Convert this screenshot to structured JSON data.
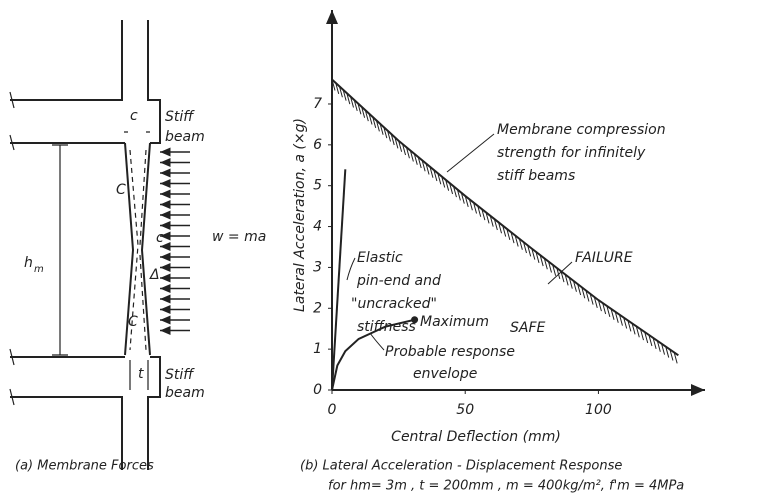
{
  "diagram": {
    "labels": {
      "stiff_top": [
        "Stiff",
        "beam"
      ],
      "stiff_bottom": [
        "Stiff",
        "beam"
      ],
      "c_top": "c",
      "C_upper": "C",
      "c_mid": "c",
      "delta": "Δ",
      "C_lower": "C",
      "t": "t",
      "load": "w = ma",
      "height": "h",
      "height_sub": "m"
    },
    "caption": "(a) Membrane Forces"
  },
  "chart_data": {
    "type": "line",
    "caption": [
      "(b) Lateral Acceleration - Displacement Response",
      "for hm= 3m , t = 200mm , m = 400kg/m², f'm = 4MPa"
    ],
    "x_label": "Central Deflection (mm)",
    "y_label": "Lateral Acceleration, a (×g)",
    "xlim": [
      0,
      140
    ],
    "ylim": [
      0,
      9.3
    ],
    "xticks": [
      0,
      50,
      100
    ],
    "yticks": [
      0,
      1,
      2,
      3,
      4,
      5,
      6,
      7
    ],
    "series": [
      {
        "name": "Membrane compression strength",
        "color": "#222222",
        "hatched": true,
        "x": [
          0,
          25,
          50,
          75,
          100,
          130
        ],
        "values": [
          7.6,
          6.1,
          4.75,
          3.46,
          2.2,
          0.85
        ]
      },
      {
        "name": "Elastic stiffness",
        "color": "#222222",
        "x": [
          0,
          5
        ],
        "values": [
          0,
          5.4
        ]
      },
      {
        "name": "Probable response envelope",
        "color": "#222222",
        "x": [
          0,
          2,
          5,
          10,
          20,
          31
        ],
        "values": [
          0,
          0.6,
          0.95,
          1.25,
          1.55,
          1.72
        ]
      }
    ],
    "annotations": {
      "membrane": [
        "Membrane compression",
        "strength for infinitely",
        "stiff beams"
      ],
      "elastic": [
        "Elastic",
        "pin-end and",
        "\"uncracked\"",
        "stiffness"
      ],
      "maximum": "Maximum",
      "envelope": [
        "Probable response",
        "envelope"
      ],
      "failure": "FAILURE",
      "safe": "SAFE"
    }
  }
}
